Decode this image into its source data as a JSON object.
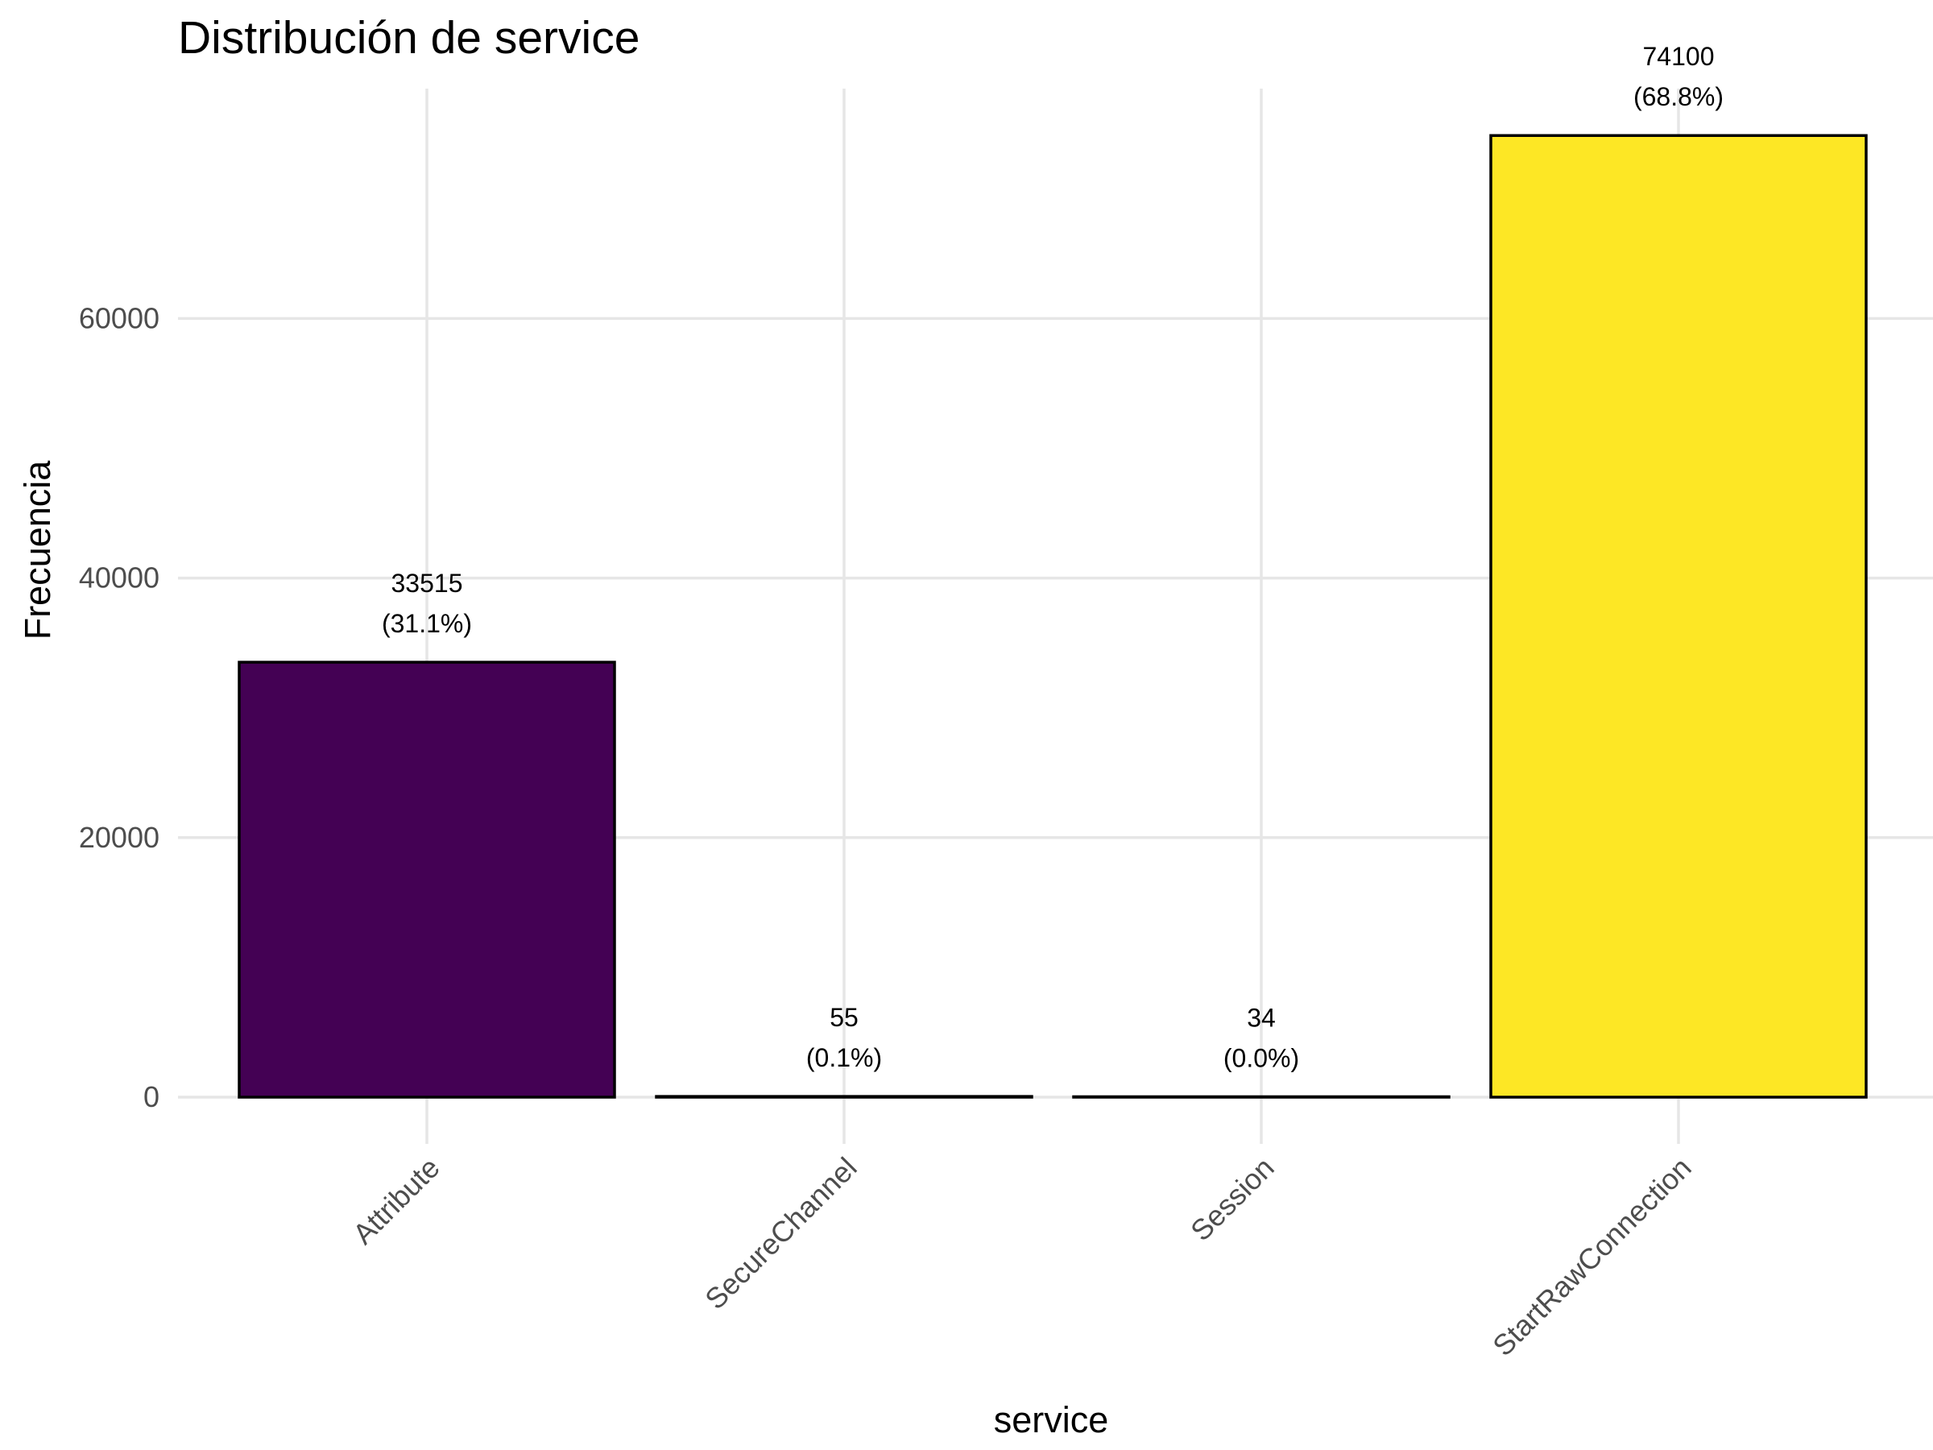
{
  "chart_data": {
    "type": "bar",
    "title": "Distribución de service",
    "xlabel": "service",
    "ylabel": "Frecuencia",
    "categories": [
      "Attribute",
      "SecureChannel",
      "Session",
      "StartRawConnection"
    ],
    "values": [
      33515,
      55,
      34,
      74100
    ],
    "value_labels": [
      "33515",
      "55",
      "34",
      "74100"
    ],
    "percent_labels": [
      "(31.1%)",
      "(0.1%)",
      "(0.0%)",
      "(68.8%)"
    ],
    "colors": [
      "#440154",
      "#31688e",
      "#35b779",
      "#fde725"
    ],
    "yticks": [
      0,
      20000,
      40000,
      60000
    ],
    "ylim": [
      0,
      74100
    ],
    "grid": true,
    "legend": "none"
  }
}
